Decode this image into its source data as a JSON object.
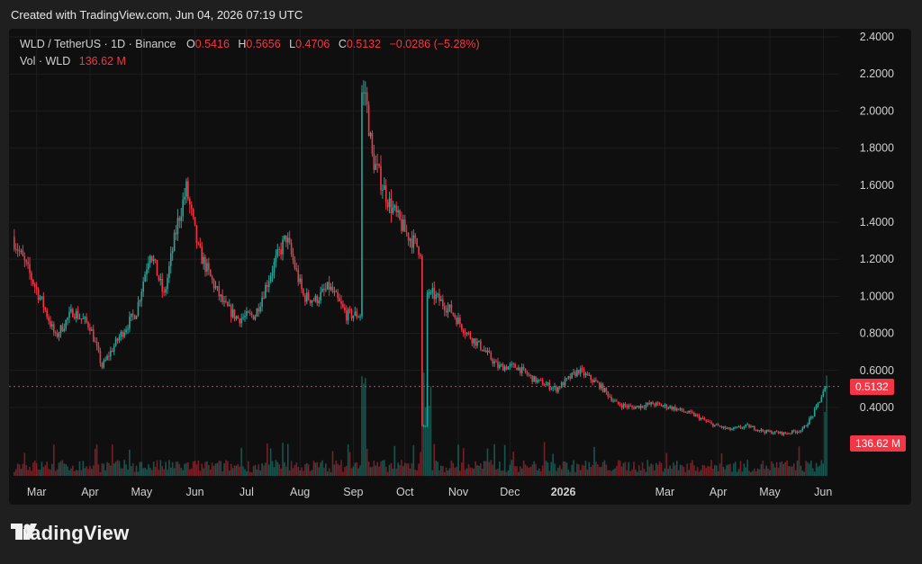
{
  "header": {
    "credit": "Created with TradingView.com, Jun 04, 2026 07:19 UTC"
  },
  "legend": {
    "symbol": "WLD / TetherUS · 1D · Binance",
    "o_label": "O",
    "o_value": "0.5416",
    "h_label": "H",
    "h_value": "0.5656",
    "l_label": "L",
    "l_value": "0.4706",
    "c_label": "C",
    "c_value": "0.5132",
    "change": "−0.0286 (−5.28%)",
    "vol_label": "Vol · WLD",
    "vol_value": "136.62 M"
  },
  "price_tag": "0.5132",
  "volume_tag": "136.62 M",
  "footer": {
    "brand": "TradingView",
    "logo_icon": "tradingview-logo-icon"
  },
  "colors": {
    "up": "#26a69a",
    "down": "#f23645",
    "background": "#0f0f0f",
    "grid": "#1e1e1e"
  },
  "chart_data": {
    "type": "candlestick",
    "ylim": [
      0.2,
      2.4
    ],
    "yticks": [
      "2.4000",
      "2.2000",
      "2.0000",
      "1.8000",
      "1.6000",
      "1.4000",
      "1.2000",
      "1.0000",
      "0.8000",
      "0.6000",
      "0.4000"
    ],
    "xticks": [
      "Mar",
      "Apr",
      "May",
      "Jun",
      "Jul",
      "Aug",
      "Sep",
      "Oct",
      "Nov",
      "Dec",
      "2026",
      "Mar",
      "Apr",
      "May",
      "Jun"
    ],
    "grid": true,
    "last_close": 0.5132,
    "last_volume": "136.62 M",
    "close_path": [
      [
        "2025-02-15",
        1.32
      ],
      [
        "2025-02-25",
        1.12
      ],
      [
        "2025-03-05",
        0.95
      ],
      [
        "2025-03-12",
        0.78
      ],
      [
        "2025-03-22",
        0.92
      ],
      [
        "2025-04-01",
        0.84
      ],
      [
        "2025-04-08",
        0.62
      ],
      [
        "2025-04-18",
        0.78
      ],
      [
        "2025-04-28",
        0.92
      ],
      [
        "2025-05-06",
        1.25
      ],
      [
        "2025-05-14",
        1.0
      ],
      [
        "2025-05-22",
        1.4
      ],
      [
        "2025-05-27",
        1.58
      ],
      [
        "2025-06-03",
        1.25
      ],
      [
        "2025-06-10",
        1.1
      ],
      [
        "2025-06-18",
        0.95
      ],
      [
        "2025-06-26",
        0.88
      ],
      [
        "2025-07-06",
        0.9
      ],
      [
        "2025-07-16",
        1.15
      ],
      [
        "2025-07-24",
        1.32
      ],
      [
        "2025-08-03",
        1.0
      ],
      [
        "2025-08-10",
        0.98
      ],
      [
        "2025-08-18",
        1.05
      ],
      [
        "2025-08-28",
        0.9
      ],
      [
        "2025-09-05",
        0.9
      ],
      [
        "2025-09-08",
        2.1
      ],
      [
        "2025-09-12",
        1.75
      ],
      [
        "2025-09-22",
        1.5
      ],
      [
        "2025-10-01",
        1.35
      ],
      [
        "2025-10-10",
        1.25
      ],
      [
        "2025-10-13",
        0.3
      ],
      [
        "2025-10-16",
        1.02
      ],
      [
        "2025-10-28",
        0.92
      ],
      [
        "2025-11-06",
        0.8
      ],
      [
        "2025-11-15",
        0.72
      ],
      [
        "2025-11-24",
        0.62
      ],
      [
        "2025-12-05",
        0.62
      ],
      [
        "2025-12-15",
        0.55
      ],
      [
        "2025-12-28",
        0.5
      ],
      [
        "2026-01-10",
        0.6
      ],
      [
        "2026-01-22",
        0.52
      ],
      [
        "2026-02-01",
        0.42
      ],
      [
        "2026-02-10",
        0.4
      ],
      [
        "2026-02-22",
        0.42
      ],
      [
        "2026-03-05",
        0.4
      ],
      [
        "2026-03-18",
        0.36
      ],
      [
        "2026-03-28",
        0.31
      ],
      [
        "2026-04-08",
        0.28
      ],
      [
        "2026-04-18",
        0.3
      ],
      [
        "2026-04-28",
        0.27
      ],
      [
        "2026-05-10",
        0.26
      ],
      [
        "2026-05-20",
        0.28
      ],
      [
        "2026-05-26",
        0.36
      ],
      [
        "2026-06-01",
        0.48
      ],
      [
        "2026-06-03",
        0.51
      ]
    ]
  }
}
